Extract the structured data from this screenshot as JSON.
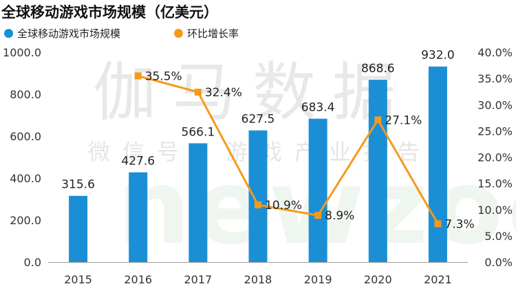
{
  "title": "全球移动游戏市场规模（亿美元）",
  "watermark": {
    "main": "伽马数据",
    "sub": "微信号：游戏产业报告",
    "latin": "newzoo"
  },
  "chart_data": {
    "type": "bar+line",
    "title": "全球移动游戏市场规模（亿美元）",
    "categories": [
      "2015",
      "2016",
      "2017",
      "2018",
      "2019",
      "2020",
      "2021"
    ],
    "series": [
      {
        "name": "全球移动游戏市场规模",
        "type": "bar",
        "axis": "left",
        "color": "#1B8FD6",
        "values": [
          315.6,
          427.6,
          566.1,
          627.5,
          683.4,
          868.6,
          932.0
        ],
        "labels": [
          "315.6",
          "427.6",
          "566.1",
          "627.5",
          "683.4",
          "868.6",
          "932.0"
        ]
      },
      {
        "name": "环比增长率",
        "type": "line",
        "axis": "right",
        "color": "#F49A1B",
        "values": [
          null,
          35.5,
          32.4,
          10.9,
          8.9,
          27.1,
          7.3
        ],
        "labels": [
          null,
          "35.5%",
          "32.4%",
          "10.9%",
          "8.9%",
          "27.1%",
          "7.3%"
        ]
      }
    ],
    "y_left": {
      "min": 0,
      "max": 1000,
      "step": 200,
      "ticks": [
        "0.0",
        "200.0",
        "400.0",
        "600.0",
        "800.0",
        "1000.0"
      ]
    },
    "y_right": {
      "min": 0,
      "max": 40,
      "step": 5,
      "ticks": [
        "0.0%",
        "5.0%",
        "10.0%",
        "15.0%",
        "20.0%",
        "25.0%",
        "30.0%",
        "35.0%",
        "40.0%"
      ]
    },
    "legend_position": "top-left",
    "grid": false
  }
}
